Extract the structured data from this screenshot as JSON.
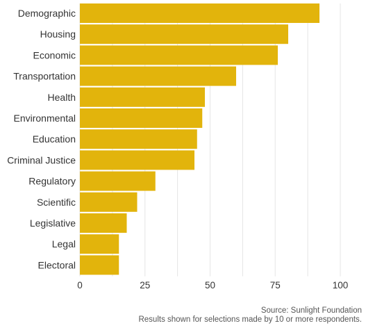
{
  "chart_data": {
    "type": "bar",
    "orientation": "horizontal",
    "categories": [
      "Demographic",
      "Housing",
      "Economic",
      "Transportation",
      "Health",
      "Environmental",
      "Education",
      "Criminal Justice",
      "Regulatory",
      "Scientific",
      "Legislative",
      "Legal",
      "Electoral"
    ],
    "values": [
      92,
      80,
      76,
      60,
      48,
      47,
      45,
      44,
      29,
      22,
      18,
      15,
      15
    ],
    "xlim": [
      0,
      100
    ],
    "xticks": [
      0,
      25,
      50,
      75,
      100
    ],
    "grid": true,
    "legend": "none",
    "bar_color": "#e2b40c"
  },
  "footer": {
    "source": "Source: Sunlight Foundation",
    "note": "Results shown for selections made by 10 or more respondents."
  }
}
